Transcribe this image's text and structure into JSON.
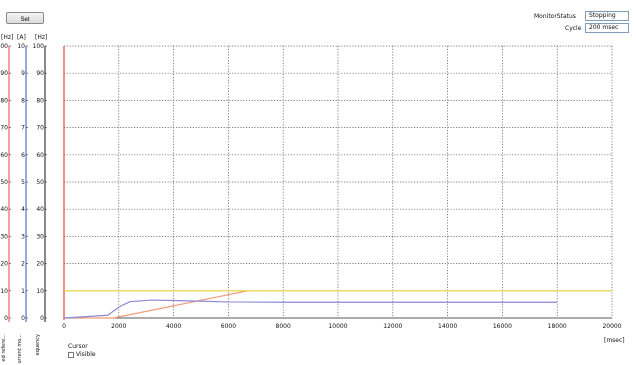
{
  "toolbar": {
    "set_label": "Set"
  },
  "monitor": {
    "status_label": "MonitorStatus",
    "status_value": "Stopping",
    "cycle_label": "Cycle",
    "cycle_value": "200 msec"
  },
  "units": {
    "left1": "[Hz]",
    "left2": "[A]",
    "left3": "[Hz]",
    "x": "[msec]"
  },
  "legend_strip": [
    "ed refere...",
    "urrent mo...",
    "equency"
  ],
  "cursor": {
    "title": "Cursor",
    "visible_label": "Visible",
    "visible_checked": false
  },
  "colors": {
    "grid": "#555555",
    "axis_hz1": "#e8453c",
    "axis_a": "#2a57c4",
    "axis_hz2": "#111111",
    "series_speed_ref": "#f09a78",
    "series_current": "#8a8ad8",
    "series_frequency": "#e8d23a"
  },
  "chart_data": {
    "type": "line",
    "xlim": [
      0,
      20000
    ],
    "x_ticks": [
      "0",
      "2000",
      "4000",
      "6000",
      "8000",
      "10000",
      "12000",
      "14000",
      "16000",
      "18000",
      "20000"
    ],
    "y_axes": [
      {
        "unit": "[Hz]",
        "ticks": [
          "0",
          "10",
          "20",
          "30",
          "40",
          "50",
          "60",
          "70",
          "80",
          "90",
          "00"
        ]
      },
      {
        "unit": "[A]",
        "ticks": [
          "0",
          "1",
          "2",
          "3",
          "4",
          "5",
          "6",
          "7",
          "8",
          "9",
          "10"
        ]
      },
      {
        "unit": "[Hz]",
        "ticks": [
          "0",
          "10",
          "20",
          "30",
          "40",
          "50",
          "60",
          "70",
          "80",
          "90",
          "100"
        ]
      }
    ],
    "ylim": [
      0,
      100
    ],
    "grid": true,
    "series": [
      {
        "color": "#f09a78",
        "x": [
          0,
          1800,
          6700
        ],
        "y": [
          0,
          0,
          10
        ]
      },
      {
        "color": "#8a8ad8",
        "x": [
          0,
          1600,
          2000,
          2400,
          3200,
          4200,
          6000,
          8000,
          12000,
          18000
        ],
        "y": [
          0,
          1,
          4,
          6,
          6.6,
          6.4,
          5.9,
          5.8,
          5.8,
          5.8
        ]
      },
      {
        "color": "#e8d23a",
        "x": [
          0,
          20000
        ],
        "y": [
          10,
          10
        ]
      }
    ]
  }
}
